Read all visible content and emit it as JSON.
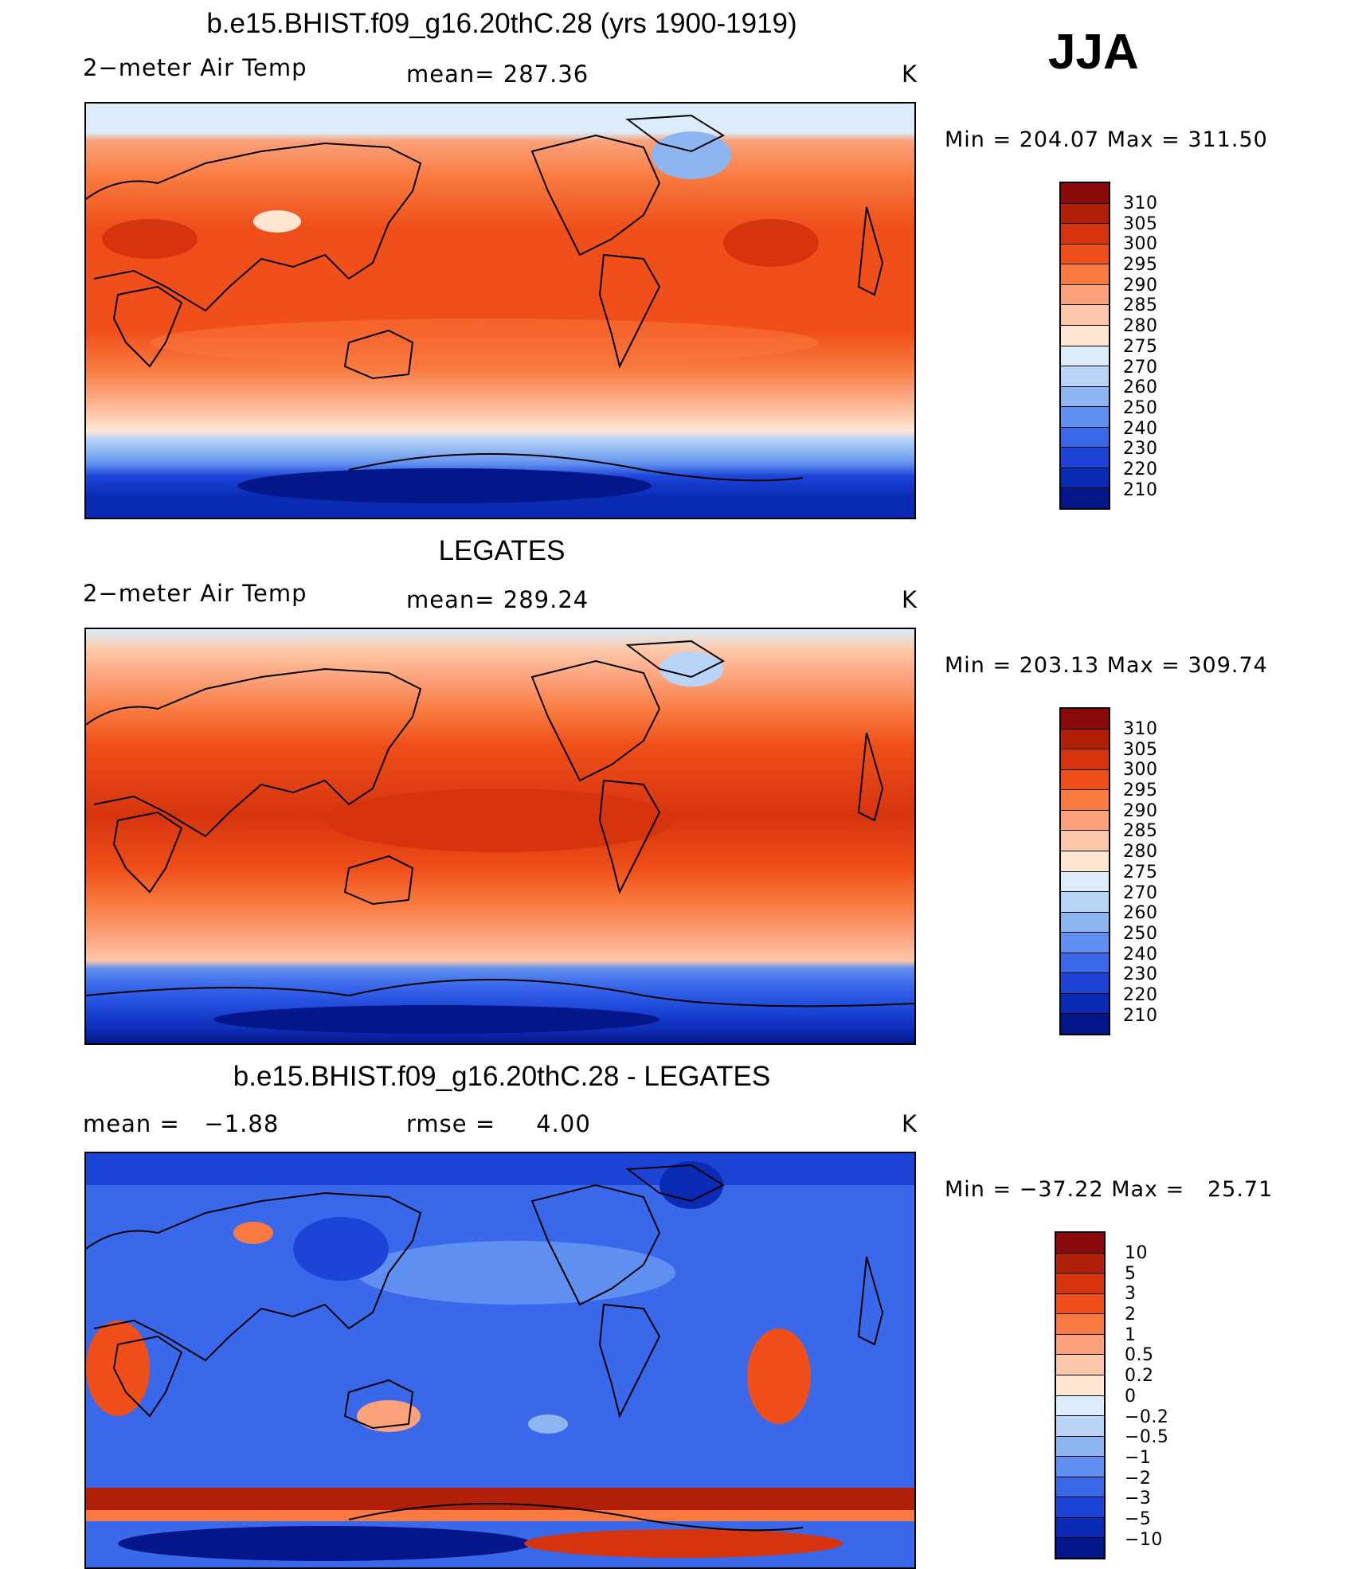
{
  "season": "JJA",
  "panels": [
    {
      "title": "b.e15.BHIST.f09_g16.20thC.28 (yrs 1900-1919)",
      "left_label": "2−meter Air Temp",
      "center_label": "mean= 287.36",
      "units": "K",
      "minmax": "Min = 204.07 Max = 311.50",
      "colorbar_labels": [
        "310",
        "305",
        "300",
        "295",
        "290",
        "285",
        "280",
        "275",
        "270",
        "260",
        "250",
        "240",
        "230",
        "220",
        "210"
      ],
      "colorbar_colors": [
        "#8b0a0a",
        "#b3200a",
        "#d6340f",
        "#f04f19",
        "#f97a40",
        "#fca27a",
        "#fdc8a9",
        "#fee6d3",
        "#dcecfa",
        "#b8d4f7",
        "#8db5f2",
        "#5f8ff0",
        "#3a68eb",
        "#1c45d8",
        "#0b2bb4",
        "#04178a"
      ]
    },
    {
      "title": "LEGATES",
      "left_label": "2−meter Air Temp",
      "center_label": "mean= 289.24",
      "units": "K",
      "minmax": "Min = 203.13 Max = 309.74",
      "colorbar_labels": [
        "310",
        "305",
        "300",
        "295",
        "290",
        "285",
        "280",
        "275",
        "270",
        "260",
        "250",
        "240",
        "230",
        "220",
        "210"
      ],
      "colorbar_colors": [
        "#8b0a0a",
        "#b3200a",
        "#d6340f",
        "#f04f19",
        "#f97a40",
        "#fca27a",
        "#fdc8a9",
        "#fee6d3",
        "#dcecfa",
        "#b8d4f7",
        "#8db5f2",
        "#5f8ff0",
        "#3a68eb",
        "#1c45d8",
        "#0b2bb4",
        "#04178a"
      ]
    },
    {
      "title": "b.e15.BHIST.f09_g16.20thC.28 - LEGATES",
      "left_label": "mean =   −1.88",
      "center_label": "rmse =     4.00",
      "units": "K",
      "minmax": "Min = −37.22 Max =   25.71",
      "colorbar_labels": [
        "10",
        "5",
        "3",
        "2",
        "1",
        "0.5",
        "0.2",
        "0",
        "−0.2",
        "−0.5",
        "−1",
        "−2",
        "−3",
        "−5",
        "−10"
      ],
      "colorbar_colors": [
        "#8b0a0a",
        "#b3200a",
        "#d6340f",
        "#f04f19",
        "#f97a40",
        "#fca27a",
        "#fdc8a9",
        "#fee6d3",
        "#dcecfa",
        "#b8d4f7",
        "#8db5f2",
        "#5f8ff0",
        "#3a68eb",
        "#1c45d8",
        "#0b2bb4",
        "#04178a"
      ]
    }
  ]
}
